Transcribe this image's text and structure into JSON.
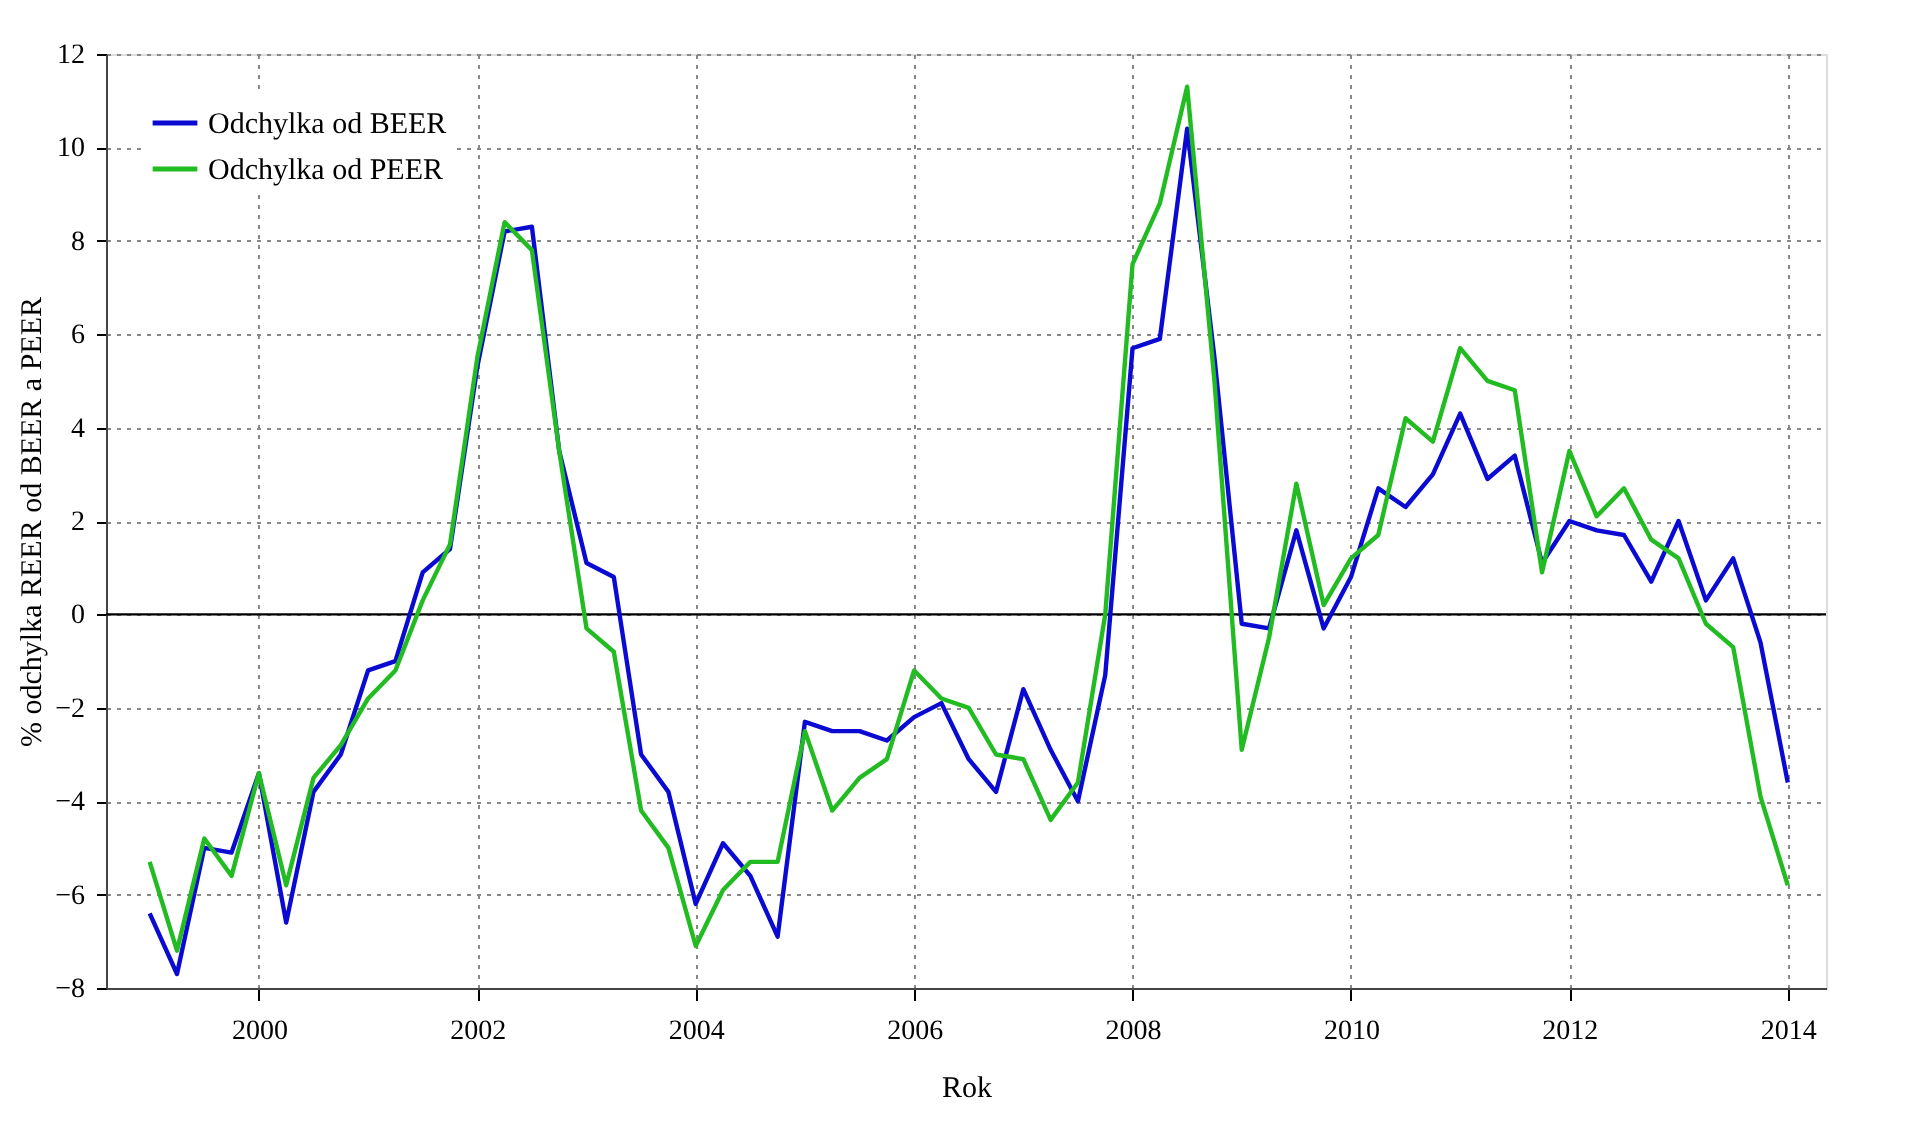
{
  "chart_data": {
    "type": "line",
    "xlabel": "Rok",
    "ylabel": "% odchylka REER od BEER a PEER",
    "x": [
      1999.0,
      1999.25,
      1999.5,
      1999.75,
      2000.0,
      2000.25,
      2000.5,
      2000.75,
      2001.0,
      2001.25,
      2001.5,
      2001.75,
      2002.0,
      2002.25,
      2002.5,
      2002.75,
      2003.0,
      2003.25,
      2003.5,
      2003.75,
      2004.0,
      2004.25,
      2004.5,
      2004.75,
      2005.0,
      2005.25,
      2005.5,
      2005.75,
      2006.0,
      2006.25,
      2006.5,
      2006.75,
      2007.0,
      2007.25,
      2007.5,
      2007.75,
      2008.0,
      2008.25,
      2008.5,
      2008.75,
      2009.0,
      2009.25,
      2009.5,
      2009.75,
      2010.0,
      2010.25,
      2010.5,
      2010.75,
      2011.0,
      2011.25,
      2011.5,
      2011.75,
      2012.0,
      2012.25,
      2012.5,
      2012.75,
      2013.0,
      2013.25,
      2013.5,
      2013.75,
      2014.0
    ],
    "series": [
      {
        "name": "Odchylka od BEER",
        "color": "#0a0ad2",
        "values": [
          -6.4,
          -7.7,
          -5.0,
          -5.1,
          -3.4,
          -6.6,
          -3.8,
          -3.0,
          -1.2,
          -1.0,
          0.9,
          1.4,
          5.3,
          8.2,
          8.3,
          3.5,
          1.1,
          0.8,
          -3.0,
          -3.8,
          -6.2,
          -4.9,
          -5.6,
          -6.9,
          -2.3,
          -2.5,
          -2.5,
          -2.7,
          -2.2,
          -1.9,
          -3.1,
          -3.8,
          -1.6,
          -2.9,
          -4.0,
          -1.3,
          5.7,
          5.9,
          10.4,
          5.5,
          -0.2,
          -0.3,
          1.8,
          -0.3,
          0.8,
          2.7,
          2.3,
          3.0,
          4.3,
          2.9,
          3.4,
          1.1,
          2.0,
          1.8,
          1.7,
          0.7,
          2.0,
          0.3,
          1.2,
          -0.6,
          -3.6
        ]
      },
      {
        "name": "Odchylka od PEER",
        "color": "#22bb22",
        "values": [
          -5.3,
          -7.2,
          -4.8,
          -5.6,
          -3.4,
          -5.8,
          -3.5,
          -2.8,
          -1.8,
          -1.2,
          0.3,
          1.5,
          5.5,
          8.4,
          7.8,
          3.5,
          -0.3,
          -0.8,
          -4.2,
          -5.0,
          -7.1,
          -5.9,
          -5.3,
          -5.3,
          -2.5,
          -4.2,
          -3.5,
          -3.1,
          -1.2,
          -1.8,
          -2.0,
          -3.0,
          -3.1,
          -4.4,
          -3.6,
          0.0,
          7.5,
          8.8,
          11.3,
          5.0,
          -2.9,
          -0.5,
          2.8,
          0.2,
          1.2,
          1.7,
          4.2,
          3.7,
          5.7,
          5.0,
          4.8,
          0.9,
          3.5,
          2.1,
          2.7,
          1.6,
          1.2,
          -0.2,
          -0.7,
          -3.9,
          -5.8
        ]
      }
    ],
    "xlim": [
      1998.6,
      2014.35
    ],
    "xticks": [
      2000,
      2002,
      2004,
      2006,
      2008,
      2010,
      2012,
      2014
    ],
    "ylim": [
      -8,
      12
    ],
    "yticks": [
      -8,
      -6,
      -4,
      -2,
      0,
      2,
      4,
      6,
      8,
      10,
      12
    ],
    "ref_lines": [
      {
        "axis": "y",
        "value": 0,
        "color": "#000000"
      }
    ],
    "grid": true,
    "legend": "top left",
    "line_style": "solid",
    "marker": "none"
  }
}
